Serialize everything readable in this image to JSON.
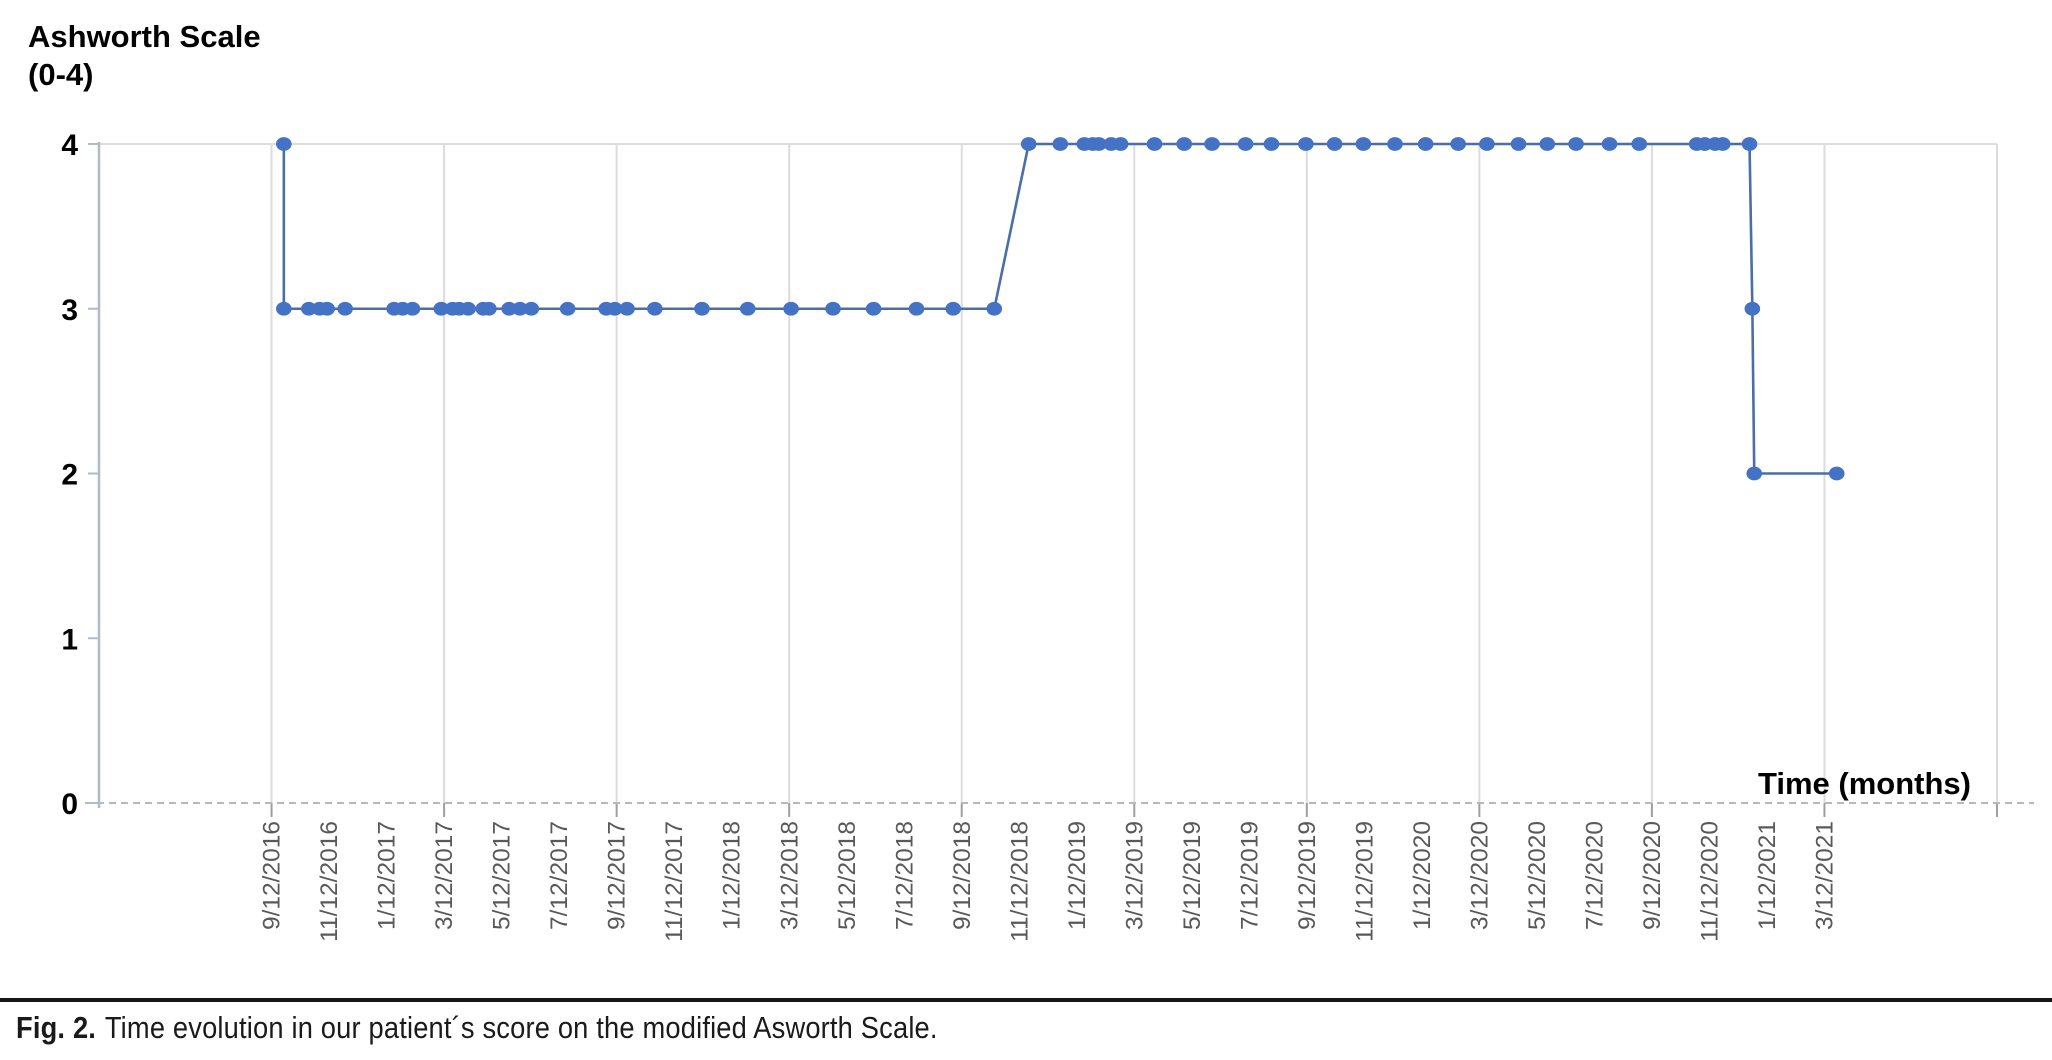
{
  "figure": {
    "y_axis_title": "Ashworth Scale\n(0-4)",
    "x_axis_label": "Time (months)",
    "caption_label": "Fig. 2.",
    "caption_text": "Time evolution in our patient´s score on the modified Asworth Scale."
  },
  "chart_data": {
    "type": "line",
    "title": "Ashworth Scale (0-4)",
    "xlabel": "Time (months)",
    "ylabel": "Ashworth Scale (0-4)",
    "ylim": [
      0,
      4
    ],
    "y_tick_labels": [
      "0",
      "1",
      "2",
      "3",
      "4"
    ],
    "x_axis_start_date": "3/12/2016",
    "x_axis_span_months": 66,
    "x_tick_labels": [
      "9/12/2016",
      "11/12/2016",
      "1/12/2017",
      "3/12/2017",
      "5/12/2017",
      "7/12/2017",
      "9/12/2017",
      "11/12/2017",
      "1/12/2018",
      "3/12/2018",
      "5/12/2018",
      "7/12/2018",
      "9/12/2018",
      "11/12/2018",
      "1/12/2019",
      "3/12/2019",
      "5/12/2019",
      "7/12/2019",
      "9/12/2019",
      "11/12/2019",
      "1/12/2020",
      "3/12/2020",
      "5/12/2020",
      "7/12/2020",
      "9/12/2020",
      "11/12/2020",
      "1/12/2021",
      "3/12/2021"
    ],
    "gridline_every_nth_tick": 3,
    "grid_vertical_on": true,
    "grid_horizontal_on": false,
    "legend": "none",
    "series": [
      {
        "name": "Modified Ashworth Scale score",
        "points": [
          {
            "date": "9/25/2016",
            "score": 4
          },
          {
            "date": "9/25/2016",
            "score": 3
          },
          {
            "date": "10/21/2016",
            "score": 3
          },
          {
            "date": "11/2/2016",
            "score": 3
          },
          {
            "date": "11/10/2016",
            "score": 3
          },
          {
            "date": "11/29/2016",
            "score": 3
          },
          {
            "date": "1/20/2017",
            "score": 3
          },
          {
            "date": "1/29/2017",
            "score": 3
          },
          {
            "date": "2/9/2017",
            "score": 3
          },
          {
            "date": "3/9/2017",
            "score": 3
          },
          {
            "date": "3/21/2017",
            "score": 3
          },
          {
            "date": "3/28/2017",
            "score": 3
          },
          {
            "date": "4/7/2017",
            "score": 3
          },
          {
            "date": "4/23/2017",
            "score": 3
          },
          {
            "date": "4/29/2017",
            "score": 3
          },
          {
            "date": "5/20/2017",
            "score": 3
          },
          {
            "date": "6/1/2017",
            "score": 3
          },
          {
            "date": "6/13/2017",
            "score": 3
          },
          {
            "date": "7/21/2017",
            "score": 3
          },
          {
            "date": "9/1/2017",
            "score": 3
          },
          {
            "date": "9/10/2017",
            "score": 3
          },
          {
            "date": "9/23/2017",
            "score": 3
          },
          {
            "date": "10/22/2017",
            "score": 3
          },
          {
            "date": "12/11/2017",
            "score": 3
          },
          {
            "date": "1/29/2018",
            "score": 3
          },
          {
            "date": "3/14/2018",
            "score": 3
          },
          {
            "date": "4/28/2018",
            "score": 3
          },
          {
            "date": "6/10/2018",
            "score": 3
          },
          {
            "date": "7/25/2018",
            "score": 3
          },
          {
            "date": "9/3/2018",
            "score": 3
          },
          {
            "date": "10/16/2018",
            "score": 3
          },
          {
            "date": "11/22/2018",
            "score": 4
          },
          {
            "date": "12/25/2018",
            "score": 4
          },
          {
            "date": "1/20/2019",
            "score": 4
          },
          {
            "date": "1/29/2019",
            "score": 4
          },
          {
            "date": "2/5/2019",
            "score": 4
          },
          {
            "date": "2/18/2019",
            "score": 4
          },
          {
            "date": "2/28/2019",
            "score": 4
          },
          {
            "date": "4/3/2019",
            "score": 4
          },
          {
            "date": "5/4/2019",
            "score": 4
          },
          {
            "date": "6/3/2019",
            "score": 4
          },
          {
            "date": "7/8/2019",
            "score": 4
          },
          {
            "date": "8/5/2019",
            "score": 4
          },
          {
            "date": "9/11/2019",
            "score": 4
          },
          {
            "date": "10/11/2019",
            "score": 4
          },
          {
            "date": "11/11/2019",
            "score": 4
          },
          {
            "date": "12/14/2019",
            "score": 4
          },
          {
            "date": "1/16/2020",
            "score": 4
          },
          {
            "date": "2/20/2020",
            "score": 4
          },
          {
            "date": "3/20/2020",
            "score": 4
          },
          {
            "date": "4/23/2020",
            "score": 4
          },
          {
            "date": "5/23/2020",
            "score": 4
          },
          {
            "date": "6/23/2020",
            "score": 4
          },
          {
            "date": "7/28/2020",
            "score": 4
          },
          {
            "date": "8/29/2020",
            "score": 4
          },
          {
            "date": "10/29/2020",
            "score": 4
          },
          {
            "date": "11/7/2020",
            "score": 4
          },
          {
            "date": "11/18/2020",
            "score": 4
          },
          {
            "date": "11/26/2020",
            "score": 4
          },
          {
            "date": "12/24/2020",
            "score": 4
          },
          {
            "date": "12/27/2020",
            "score": 3
          },
          {
            "date": "12/29/2020",
            "score": 2
          },
          {
            "date": "3/25/2021",
            "score": 2
          }
        ]
      }
    ],
    "colors": {
      "series_line": "#4b6ea9",
      "series_marker": "#4472c4",
      "gridline": "#dcdcdc",
      "y_axis_line": "#aebbcc",
      "zero_axis_dashed": "#b8b8b8",
      "axis_tick": "#9f9f9f",
      "x_tick_label_text": "#595959",
      "y_tick_label_text": "#000000"
    }
  }
}
